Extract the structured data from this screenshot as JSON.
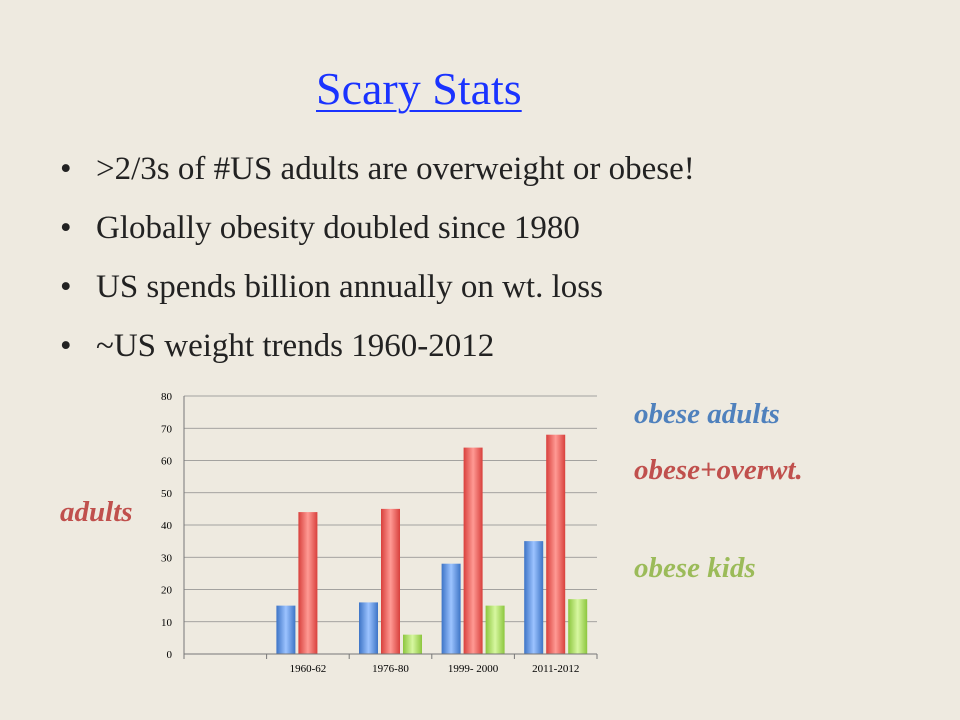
{
  "slide": {
    "title": "Scary Stats",
    "bullets": [
      ">2/3s of #US adults are overweight or obese!",
      "Globally obesity doubled since 1980",
      "US spends billion annually on wt. loss",
      "~US weight trends 1960-2012"
    ],
    "bullet_glyph": "•",
    "labels": {
      "adults": "adults",
      "obese_adults": "obese adults",
      "obese_overwt": "obese+overwt.",
      "obese_kids": "obese kids"
    }
  },
  "chart_data": {
    "type": "bar",
    "categories": [
      "",
      "1960-62",
      "1976-80",
      "1999- 2000",
      "2011-2012"
    ],
    "series": [
      {
        "values": [
          null,
          15,
          16,
          28,
          35
        ],
        "color": "#4f81bd"
      },
      {
        "values": [
          null,
          44,
          45,
          64,
          68
        ],
        "color": "#c0504d"
      },
      {
        "values": [
          null,
          null,
          6,
          15,
          17
        ],
        "color": "#9bbb59"
      }
    ],
    "y_ticks": [
      "0",
      "10",
      "20",
      "30",
      "40",
      "50",
      "60",
      "70",
      "80"
    ],
    "ylim": [
      0,
      80
    ],
    "grid": true,
    "legend": "none"
  }
}
